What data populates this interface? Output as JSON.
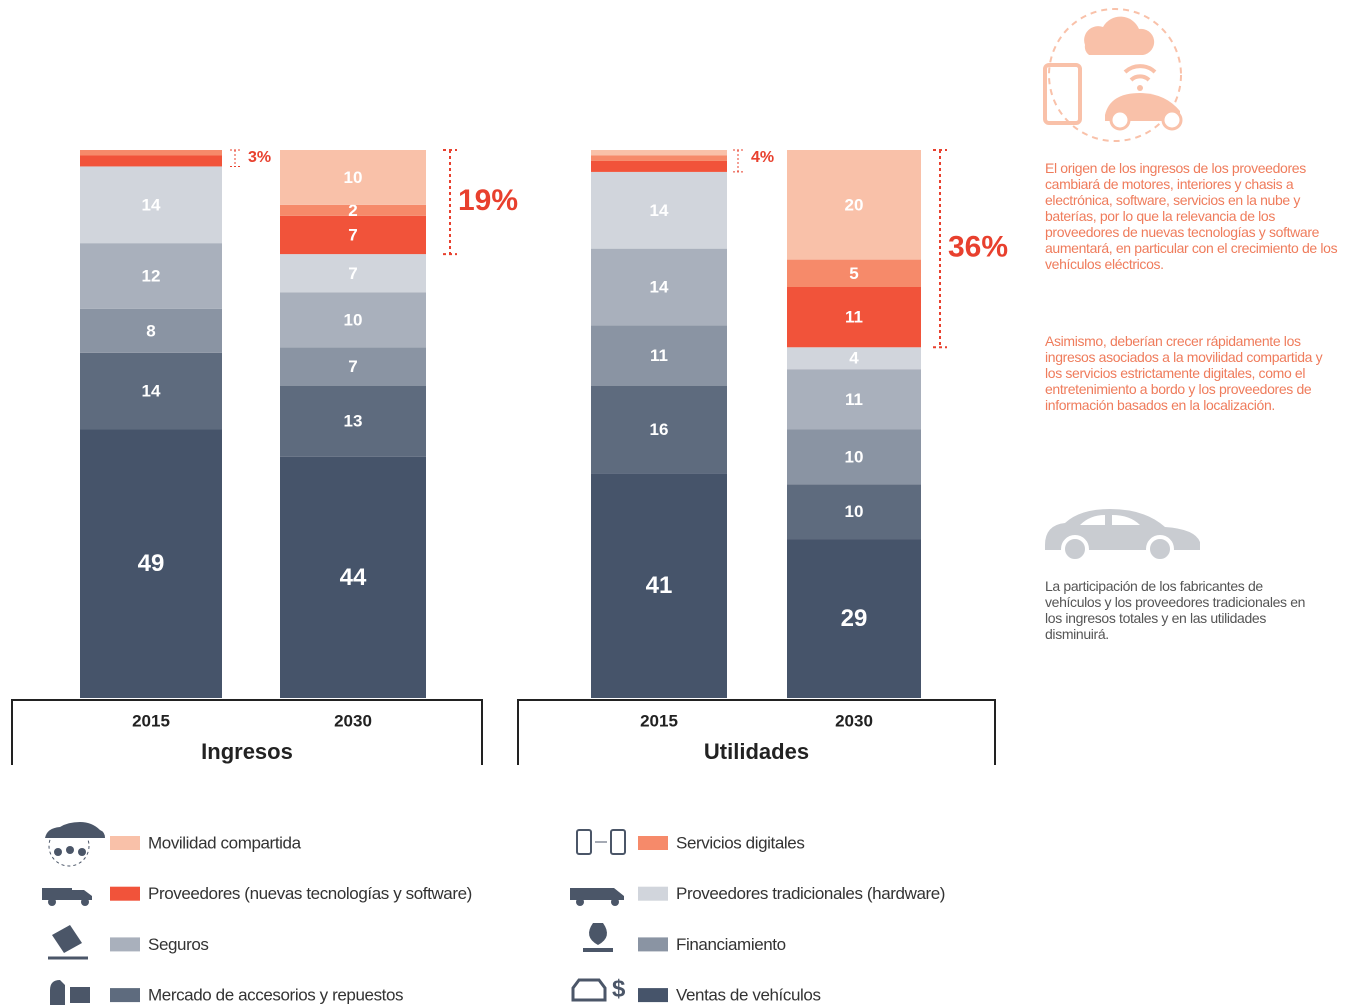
{
  "chart_data": [
    {
      "type": "stacked-bar",
      "xlabel": "Ingresos",
      "categories": [
        "2015",
        "2030"
      ],
      "ylim": [
        0,
        100
      ],
      "series": [
        {
          "name": "Ventas de vehículos",
          "color": "#46546a",
          "values": [
            49,
            44
          ]
        },
        {
          "name": "Mercado de accesorios y repuestos",
          "color": "#5e6b7e",
          "values": [
            14,
            13
          ]
        },
        {
          "name": "Financiamiento",
          "color": "#8a94a3",
          "values": [
            8,
            7
          ]
        },
        {
          "name": "Seguros",
          "color": "#a9b0bc",
          "values": [
            12,
            10
          ]
        },
        {
          "name": "Proveedores tradicionales (hardware)",
          "color": "#d1d5dc",
          "values": [
            14,
            7
          ]
        },
        {
          "name": "Proveedores (nuevas tecnologías y software)",
          "color": "#f1533a",
          "values": [
            2,
            7
          ],
          "value_labels": [
            null,
            "7"
          ]
        },
        {
          "name": "Servicios digitales",
          "color": "#f68a6a",
          "values": [
            1,
            2
          ],
          "value_labels": [
            null,
            "2"
          ]
        },
        {
          "name": "Movilidad compartida",
          "color": "#f9c1a9",
          "values": [
            0,
            10
          ],
          "value_labels": [
            null,
            "10"
          ]
        }
      ],
      "brackets": [
        {
          "value": 3,
          "label": "3%"
        },
        {
          "value": 19,
          "label": "19%"
        }
      ]
    },
    {
      "type": "stacked-bar",
      "xlabel": "Utilidades",
      "categories": [
        "2015",
        "2030"
      ],
      "ylim": [
        0,
        100
      ],
      "series": [
        {
          "name": "Ventas de vehículos",
          "color": "#46546a",
          "values": [
            41,
            29
          ]
        },
        {
          "name": "Mercado de accesorios y repuestos",
          "color": "#5e6b7e",
          "values": [
            16,
            10
          ]
        },
        {
          "name": "Financiamiento",
          "color": "#8a94a3",
          "values": [
            11,
            10
          ]
        },
        {
          "name": "Seguros",
          "color": "#a9b0bc",
          "values": [
            14,
            11
          ]
        },
        {
          "name": "Proveedores tradicionales (hardware)",
          "color": "#d1d5dc",
          "values": [
            14,
            4
          ]
        },
        {
          "name": "Proveedores (nuevas tecnologías y software)",
          "color": "#f1533a",
          "values": [
            2,
            11
          ],
          "value_labels": [
            null,
            "11"
          ]
        },
        {
          "name": "Servicios digitales",
          "color": "#f68a6a",
          "values": [
            1,
            5
          ],
          "value_labels": [
            null,
            "5"
          ]
        },
        {
          "name": "Movilidad compartida",
          "color": "#f9c1a9",
          "values": [
            1,
            20
          ],
          "value_labels": [
            null,
            "20"
          ]
        }
      ],
      "brackets": [
        {
          "value": 4,
          "label": "4%"
        },
        {
          "value": 36,
          "label": "36%"
        }
      ]
    }
  ],
  "notes": [
    "El origen de los ingresos de los proveedores cambiará de motores, interiores y chasis a electrónica, software, servicios en la nube y baterías, por lo que la relevancia de los proveedores de nuevas tecnologías y software aumentará, en particular con el crecimiento de los vehículos eléctricos.",
    "Asimismo, deberían crecer rápidamente los ingresos asociados a la movilidad compartida y los servicios estrictamente digitales, como el entretenimiento a bordo y los proveedores de información basados en la localización.",
    "La participación de los fabricantes de vehículos y los proveedores tradicionales en los ingresos totales y en las utilidades disminuirá."
  ]
}
